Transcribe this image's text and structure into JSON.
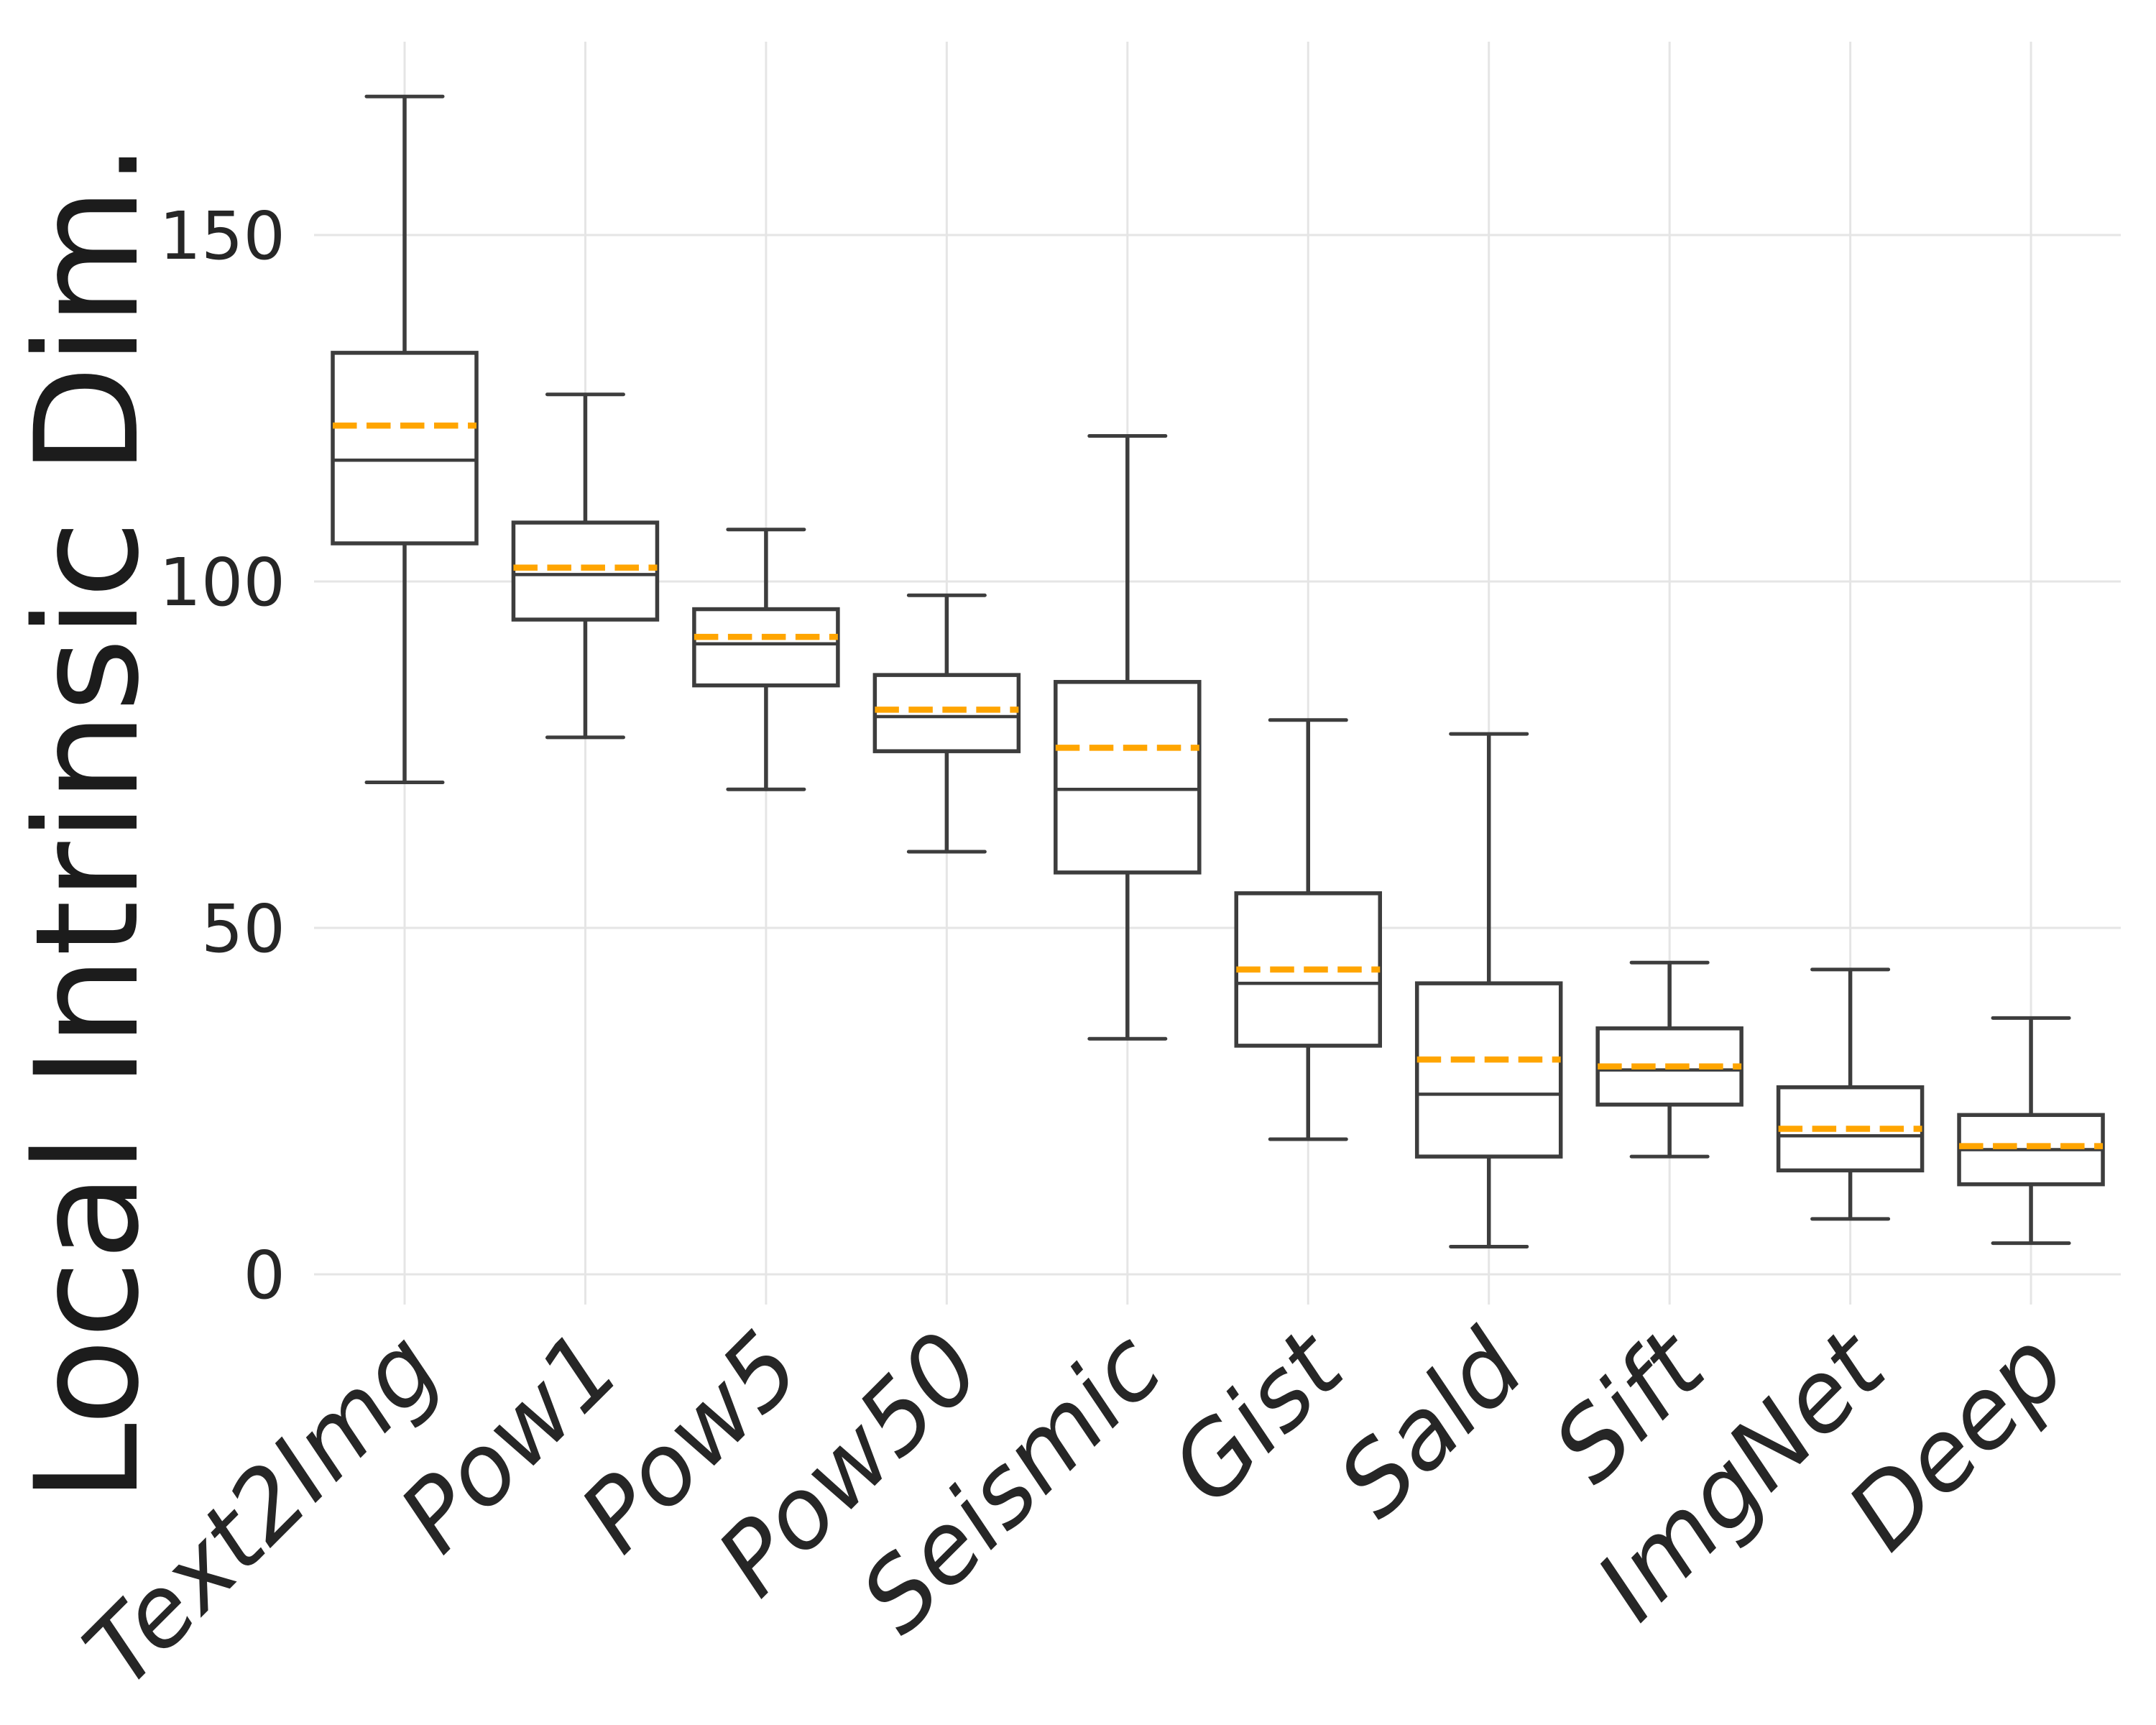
{
  "chart_data": {
    "type": "box",
    "title": "",
    "xlabel": "",
    "ylabel": "Local Intrinsic Dim.",
    "y_ticks": [
      0,
      50,
      100,
      150
    ],
    "ylim": [
      -4.5,
      178
    ],
    "grid": true,
    "legend_position": "none",
    "categories": [
      "Text2Img",
      "Pow1",
      "Pow5",
      "Pow50",
      "Seismic",
      "Gist",
      "Sald",
      "Sift",
      "ImgNet",
      "Deep"
    ],
    "series": [
      {
        "name": "Text2Img",
        "whisker_low": 71,
        "q1": 105.5,
        "median": 117.5,
        "mean": 122.5,
        "q3": 133,
        "whisker_high": 170
      },
      {
        "name": "Pow1",
        "whisker_low": 77.5,
        "q1": 94.5,
        "median": 101,
        "mean": 102,
        "q3": 108.5,
        "whisker_high": 127
      },
      {
        "name": "Pow5",
        "whisker_low": 70,
        "q1": 85,
        "median": 91,
        "mean": 92,
        "q3": 96,
        "whisker_high": 107.5
      },
      {
        "name": "Pow50",
        "whisker_low": 61,
        "q1": 75.5,
        "median": 80.5,
        "mean": 81.5,
        "q3": 86.5,
        "whisker_high": 98
      },
      {
        "name": "Seismic",
        "whisker_low": 34,
        "q1": 58,
        "median": 70,
        "mean": 76,
        "q3": 85.5,
        "whisker_high": 121
      },
      {
        "name": "Gist",
        "whisker_low": 19.5,
        "q1": 33,
        "median": 42,
        "mean": 44,
        "q3": 55,
        "whisker_high": 80
      },
      {
        "name": "Sald",
        "whisker_low": 4,
        "q1": 17,
        "median": 26,
        "mean": 31,
        "q3": 42,
        "whisker_high": 78
      },
      {
        "name": "Sift",
        "whisker_low": 17,
        "q1": 24.5,
        "median": 29.5,
        "mean": 30,
        "q3": 35.5,
        "whisker_high": 45
      },
      {
        "name": "ImgNet",
        "whisker_low": 8,
        "q1": 15,
        "median": 20,
        "mean": 21,
        "q3": 27,
        "whisker_high": 44
      },
      {
        "name": "Deep",
        "whisker_low": 4.5,
        "q1": 13,
        "median": 18,
        "mean": 18.5,
        "q3": 23,
        "whisker_high": 37
      }
    ],
    "colors": {
      "box_line": "#3d3d3d",
      "median_line": "#3d3d3d",
      "mean_line": "#ffa500",
      "grid_line": "#e5e5e5",
      "box_fill": "#ffffff",
      "text": "#262626",
      "background": "#ffffff"
    }
  }
}
